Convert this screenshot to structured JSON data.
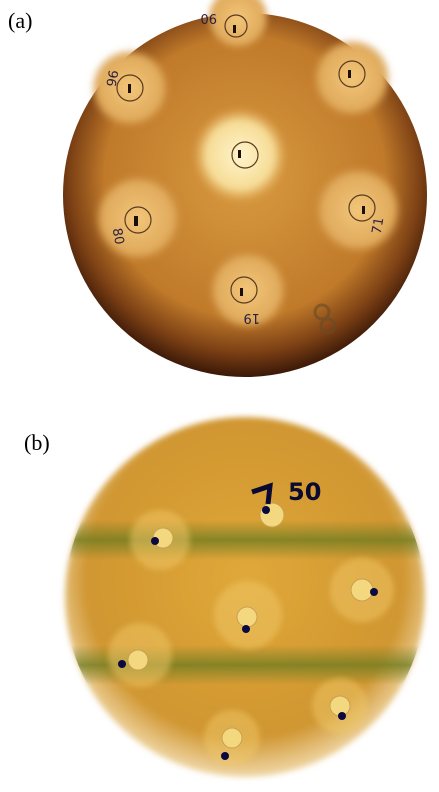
{
  "panels": [
    {
      "label": "(a)",
      "plate_labels": [
        "90",
        "96",
        "80",
        "19",
        "71"
      ]
    },
    {
      "label": "(b)",
      "plate_labels": [
        "50"
      ]
    }
  ]
}
